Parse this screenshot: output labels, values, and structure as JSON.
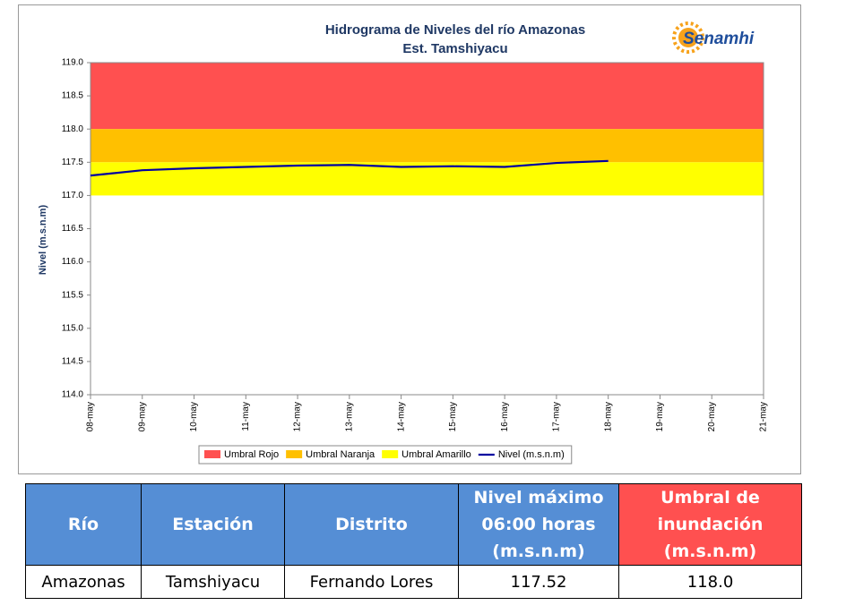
{
  "chart_data": {
    "type": "line",
    "title": "Hidrograma de Niveles del río Amazonas",
    "subtitle": "Est. Tamshiyacu",
    "logo": "Senamhi",
    "ylabel": "Nivel (m.s.n.m)",
    "categories": [
      "08-may",
      "09-may",
      "10-may",
      "11-may",
      "12-may",
      "13-may",
      "14-may",
      "15-may",
      "16-may",
      "17-may",
      "18-may",
      "19-may",
      "20-may",
      "21-may"
    ],
    "bands": [
      {
        "name": "Umbral Rojo",
        "color": "#ff5050",
        "range": [
          118,
          119
        ]
      },
      {
        "name": "Umbral Naranja",
        "color": "#ffc000",
        "range": [
          117.5,
          118
        ]
      },
      {
        "name": "Umbral Amarillo",
        "color": "#ffff00",
        "range": [
          117,
          117.5
        ]
      }
    ],
    "series": [
      {
        "name": "Nivel (m.s.n.m)",
        "color": "#0000a0",
        "values": [
          117.3,
          117.38,
          117.41,
          117.43,
          117.45,
          117.46,
          117.43,
          117.44,
          117.43,
          117.49,
          117.52,
          null,
          null,
          null
        ]
      }
    ],
    "ylim": [
      114,
      119
    ],
    "yticks": [
      {
        "value": 114,
        "label": "114.0"
      },
      114.5,
      {
        "value": 115,
        "label": "115.0"
      },
      115.5,
      {
        "value": 116,
        "label": "116.0"
      },
      116.5,
      {
        "value": 117,
        "label": "117.0"
      },
      117.5,
      {
        "value": 118,
        "label": "118.0"
      },
      118.5,
      {
        "value": 119,
        "label": "119.0"
      }
    ]
  },
  "table": {
    "header": [
      [
        "Río"
      ],
      [
        "Estación"
      ],
      [
        "Distrito"
      ],
      [
        "Nivel máximo",
        "06:00 horas",
        "(m.s.n.m)"
      ],
      [
        "Umbral de",
        "inundación",
        "(m.s.n.m)"
      ]
    ],
    "rows": [
      [
        "Amazonas",
        "Tamshiyacu",
        "Fernando Lores",
        "117.52",
        "118.0"
      ]
    ]
  }
}
